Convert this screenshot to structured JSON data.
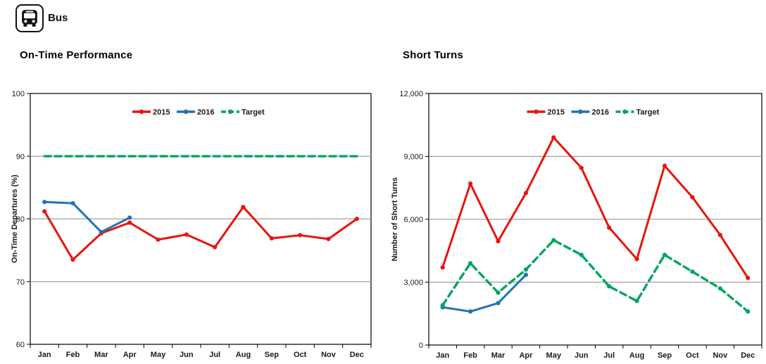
{
  "header": {
    "label": "Bus",
    "icon": "bus-icon"
  },
  "colors": {
    "series_2015": "#e8140c",
    "series_2016": "#1e73b8",
    "target": "#00a45f",
    "grid": "#8e8e8e",
    "axis": "#000000",
    "text": "#1a1a1a"
  },
  "chart_data": [
    {
      "type": "line",
      "title": "On-Time Performance",
      "ylabel": "On-Time Departures (%)",
      "xlabel": "",
      "categories": [
        "Jan",
        "Feb",
        "Mar",
        "Apr",
        "May",
        "Jun",
        "Jul",
        "Aug",
        "Sep",
        "Oct",
        "Nov",
        "Dec"
      ],
      "ylim": [
        60,
        100
      ],
      "yticks": [
        60,
        70,
        80,
        90,
        100
      ],
      "ytick_labels": [
        "60",
        "70",
        "80",
        "90",
        "100"
      ],
      "grid": "horizontal-gridlines",
      "legend_position": "top-center-inside",
      "series": [
        {
          "name": "2015",
          "color": "#e8140c",
          "dashed": false,
          "markers": true,
          "values": [
            81.2,
            73.5,
            77.7,
            79.4,
            76.7,
            77.5,
            75.5,
            81.9,
            76.9,
            77.4,
            76.8,
            80
          ]
        },
        {
          "name": "2016",
          "color": "#1e73b8",
          "dashed": false,
          "markers": true,
          "values": [
            82.7,
            82.5,
            77.9,
            80.2,
            null,
            null,
            null,
            null,
            null,
            null,
            null,
            null
          ]
        },
        {
          "name": "Target",
          "color": "#00a45f",
          "dashed": true,
          "markers": false,
          "values": [
            90,
            90,
            90,
            90,
            90,
            90,
            90,
            90,
            90,
            90,
            90,
            90
          ]
        }
      ]
    },
    {
      "type": "line",
      "title": "Short Turns",
      "ylabel": "Number of Short Turns",
      "xlabel": "",
      "categories": [
        "Jan",
        "Feb",
        "Mar",
        "Apr",
        "May",
        "Jun",
        "Jul",
        "Aug",
        "Sep",
        "Oct",
        "Nov",
        "Dec"
      ],
      "ylim": [
        0,
        12000
      ],
      "yticks": [
        0,
        3000,
        6000,
        9000,
        12000
      ],
      "ytick_labels": [
        "0",
        "3,000",
        "6,000",
        "9,000",
        "12,000"
      ],
      "grid": "horizontal-gridlines",
      "legend_position": "top-center-inside",
      "series": [
        {
          "name": "2015",
          "color": "#e8140c",
          "dashed": false,
          "markers": true,
          "values": [
            3700,
            7700,
            4950,
            7250,
            9900,
            8450,
            5600,
            4100,
            8550,
            7050,
            5250,
            3200
          ]
        },
        {
          "name": "2016",
          "color": "#1e73b8",
          "dashed": false,
          "markers": true,
          "values": [
            1800,
            1600,
            2000,
            3350,
            null,
            null,
            null,
            null,
            null,
            null,
            null,
            null
          ]
        },
        {
          "name": "Target",
          "color": "#00a45f",
          "dashed": true,
          "markers": true,
          "values": [
            1900,
            3900,
            2500,
            3600,
            5000,
            4300,
            2800,
            2100,
            4300,
            3500,
            2700,
            1600
          ]
        }
      ]
    }
  ]
}
